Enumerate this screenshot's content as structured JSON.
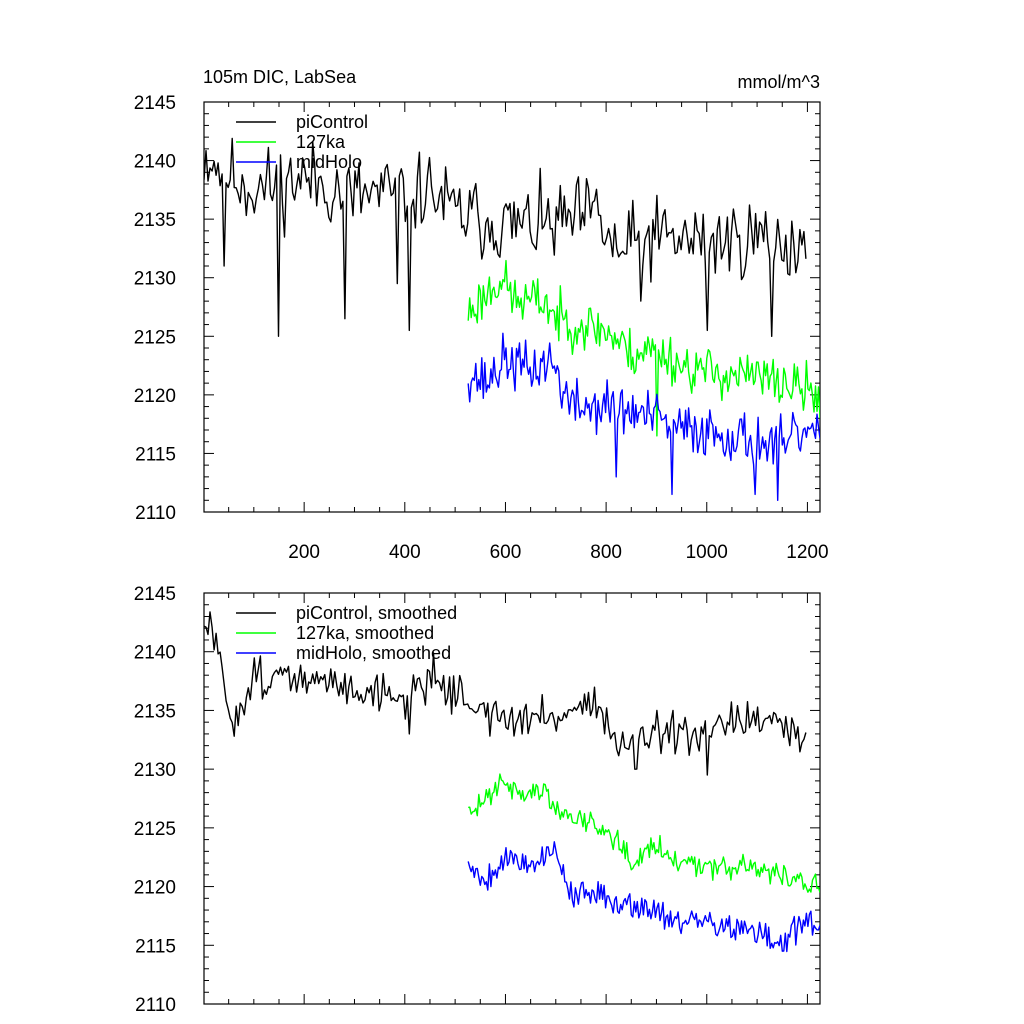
{
  "chart_data": [
    {
      "type": "line",
      "title": "105m DIC, LabSea",
      "units": "mmol/m^3",
      "xlim": [
        1,
        1225
      ],
      "ylim": [
        2110,
        2145
      ],
      "yticks": [
        2110,
        2115,
        2120,
        2125,
        2130,
        2135,
        2140,
        2145
      ],
      "xticks": [
        200,
        400,
        600,
        800,
        1000,
        1200
      ],
      "xtick_labels_visible": true,
      "legend": [
        "piControl",
        "127ka",
        "midHolo"
      ],
      "legend_position": "top-left",
      "series": [
        {
          "name": "piControl",
          "color": "#000000",
          "x_start": 1,
          "x_end": 1200,
          "step": 4,
          "noise": 2.6,
          "seed": 11,
          "trend": [
            [
              1,
              2140.5
            ],
            [
              100,
              2137.5
            ],
            [
              200,
              2138.5
            ],
            [
              300,
              2137
            ],
            [
              450,
              2137.5
            ],
            [
              500,
              2135.5
            ],
            [
              600,
              2134.5
            ],
            [
              700,
              2134.5
            ],
            [
              780,
              2135.5
            ],
            [
              820,
              2132
            ],
            [
              860,
              2133
            ],
            [
              900,
              2133.5
            ],
            [
              1000,
              2133
            ],
            [
              1100,
              2133.5
            ],
            [
              1200,
              2132.5
            ]
          ],
          "spikes": [
            [
              150,
              2125
            ],
            [
              283,
              2126.5
            ],
            [
              410,
              2125.5
            ],
            [
              385,
              2129.5
            ],
            [
              40,
              2131
            ],
            [
              870,
              2128
            ],
            [
              1130,
              2125
            ],
            [
              1000,
              2125.5
            ]
          ]
        },
        {
          "name": "127ka",
          "color": "#00ff00",
          "x_start": 526,
          "x_end": 1225,
          "step": 3,
          "noise": 1.6,
          "seed": 23,
          "trend": [
            [
              526,
              2127
            ],
            [
              560,
              2128.5
            ],
            [
              590,
              2130
            ],
            [
              620,
              2128
            ],
            [
              680,
              2128
            ],
            [
              700,
              2126.5
            ],
            [
              800,
              2125.5
            ],
            [
              850,
              2123.5
            ],
            [
              900,
              2124
            ],
            [
              950,
              2122.5
            ],
            [
              1000,
              2122
            ],
            [
              1100,
              2121.5
            ],
            [
              1150,
              2121
            ],
            [
              1225,
              2120
            ]
          ],
          "spikes": [
            [
              900,
              2116.5
            ],
            [
              1225,
              2118
            ]
          ]
        },
        {
          "name": "midHolo",
          "color": "#0000ff",
          "x_start": 526,
          "x_end": 1225,
          "step": 3,
          "noise": 1.7,
          "seed": 37,
          "trend": [
            [
              526,
              2122
            ],
            [
              560,
              2121
            ],
            [
              600,
              2123
            ],
            [
              650,
              2122
            ],
            [
              690,
              2123
            ],
            [
              730,
              2119
            ],
            [
              800,
              2119
            ],
            [
              850,
              2118.5
            ],
            [
              900,
              2118
            ],
            [
              950,
              2117
            ],
            [
              1000,
              2117
            ],
            [
              1050,
              2116.5
            ],
            [
              1100,
              2116
            ],
            [
              1150,
              2115.5
            ],
            [
              1200,
              2117
            ],
            [
              1225,
              2116
            ]
          ],
          "spikes": [
            [
              820,
              2113
            ],
            [
              930,
              2111.5
            ],
            [
              1140,
              2111
            ],
            [
              1095,
              2111.5
            ]
          ]
        }
      ]
    },
    {
      "type": "line",
      "title": "",
      "xlim": [
        1,
        1225
      ],
      "ylim": [
        2110,
        2145
      ],
      "yticks": [
        2110,
        2115,
        2120,
        2125,
        2130,
        2135,
        2140,
        2145
      ],
      "xticks": [
        200,
        400,
        600,
        800,
        1000,
        1200
      ],
      "xtick_labels_visible": false,
      "legend": [
        "piControl, smoothed",
        "127ka, smoothed",
        "midHolo, smoothed"
      ],
      "legend_position": "top-left",
      "series": [
        {
          "name": "piControl, smoothed",
          "color": "#000000",
          "x_start": 1,
          "x_end": 1200,
          "step": 4,
          "noise": 1.3,
          "seed": 51,
          "trend": [
            [
              1,
              2141.5
            ],
            [
              15,
              2142.5
            ],
            [
              40,
              2137
            ],
            [
              60,
              2134
            ],
            [
              100,
              2138
            ],
            [
              200,
              2137.5
            ],
            [
              300,
              2137
            ],
            [
              400,
              2136
            ],
            [
              450,
              2138
            ],
            [
              500,
              2136.5
            ],
            [
              560,
              2135
            ],
            [
              600,
              2134
            ],
            [
              700,
              2134.5
            ],
            [
              780,
              2136
            ],
            [
              820,
              2132
            ],
            [
              860,
              2131.5
            ],
            [
              900,
              2133
            ],
            [
              1000,
              2132.5
            ],
            [
              1060,
              2134.5
            ],
            [
              1100,
              2134
            ],
            [
              1200,
              2132.5
            ]
          ],
          "spikes": [
            [
              410,
              2133
            ],
            [
              1000,
              2129.5
            ],
            [
              860,
              2130
            ]
          ]
        },
        {
          "name": "127ka, smoothed",
          "color": "#00ff00",
          "x_start": 526,
          "x_end": 1225,
          "step": 3,
          "noise": 0.8,
          "seed": 63,
          "trend": [
            [
              526,
              2126
            ],
            [
              560,
              2127.5
            ],
            [
              595,
              2129.5
            ],
            [
              620,
              2128
            ],
            [
              680,
              2128
            ],
            [
              700,
              2126.5
            ],
            [
              800,
              2125
            ],
            [
              850,
              2122.5
            ],
            [
              900,
              2123.5
            ],
            [
              950,
              2122
            ],
            [
              1000,
              2122
            ],
            [
              1100,
              2121.5
            ],
            [
              1150,
              2121
            ],
            [
              1225,
              2120
            ]
          ],
          "spikes": [
            [
              1225,
              2119.5
            ]
          ]
        },
        {
          "name": "midHolo, smoothed",
          "color": "#0000ff",
          "x_start": 526,
          "x_end": 1225,
          "step": 3,
          "noise": 0.9,
          "seed": 79,
          "trend": [
            [
              526,
              2122
            ],
            [
              560,
              2120.5
            ],
            [
              600,
              2122.5
            ],
            [
              650,
              2122
            ],
            [
              700,
              2123
            ],
            [
              730,
              2119.5
            ],
            [
              800,
              2119
            ],
            [
              850,
              2118.5
            ],
            [
              900,
              2118
            ],
            [
              950,
              2117
            ],
            [
              1000,
              2117
            ],
            [
              1050,
              2116.5
            ],
            [
              1100,
              2116
            ],
            [
              1150,
              2115
            ],
            [
              1200,
              2117.5
            ],
            [
              1225,
              2116
            ]
          ],
          "spikes": [
            [
              950,
              2116
            ],
            [
              1150,
              2114.5
            ]
          ]
        }
      ]
    }
  ]
}
